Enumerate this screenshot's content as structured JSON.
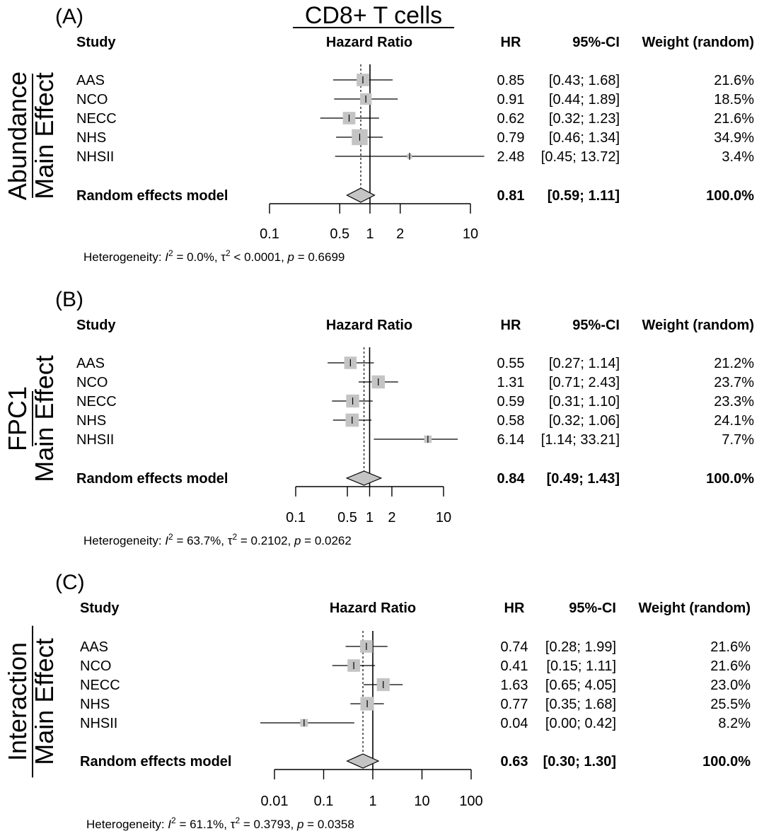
{
  "title": "CD8+ T cells",
  "chart_data": [
    {
      "type": "forest",
      "panel_label": "(A)",
      "side_label_top": "Abundance",
      "side_label_bottom": "Main Effect",
      "headers": {
        "study": "Study",
        "plot": "Hazard Ratio",
        "hr": "HR",
        "ci": "95%-CI",
        "weight": "Weight (random)"
      },
      "x_scale": "log",
      "xlim": [
        0.1,
        10
      ],
      "ticks": [
        0.1,
        0.5,
        1,
        2,
        10
      ],
      "tick_labels": [
        "0.1",
        "0.5",
        "1",
        "2",
        "10"
      ],
      "studies": [
        {
          "name": "AAS",
          "hr": 0.85,
          "lo": 0.43,
          "hi": 1.68,
          "weight": 21.6,
          "hr_text": "0.85",
          "ci_text": "[0.43;  1.68]",
          "weight_text": "21.6%"
        },
        {
          "name": "NCO",
          "hr": 0.91,
          "lo": 0.44,
          "hi": 1.89,
          "weight": 18.5,
          "hr_text": "0.91",
          "ci_text": "[0.44;  1.89]",
          "weight_text": "18.5%"
        },
        {
          "name": "NECC",
          "hr": 0.62,
          "lo": 0.32,
          "hi": 1.23,
          "weight": 21.6,
          "hr_text": "0.62",
          "ci_text": "[0.32;  1.23]",
          "weight_text": "21.6%"
        },
        {
          "name": "NHS",
          "hr": 0.79,
          "lo": 0.46,
          "hi": 1.34,
          "weight": 34.9,
          "hr_text": "0.79",
          "ci_text": "[0.46;  1.34]",
          "weight_text": "34.9%"
        },
        {
          "name": "NHSII",
          "hr": 2.48,
          "lo": 0.45,
          "hi": 13.72,
          "weight": 3.4,
          "hr_text": "2.48",
          "ci_text": "[0.45; 13.72]",
          "weight_text": "3.4%"
        }
      ],
      "pooled": {
        "name": "Random effects model",
        "hr": 0.81,
        "lo": 0.59,
        "hi": 1.11,
        "hr_text": "0.81",
        "ci_text": "[0.59;  1.11]",
        "weight_text": "100.0%"
      },
      "heterogeneity": {
        "prefix": "Heterogeneity: ",
        "i2_symbol": "I",
        "i2_value": " = 0.0%, ",
        "tau_symbol": "τ",
        "tau_value": " < 0.0001, ",
        "p_symbol": "p",
        "p_value": " = 0.6699"
      }
    },
    {
      "type": "forest",
      "panel_label": "(B)",
      "side_label_top": "FPC1",
      "side_label_bottom": "Main Effect",
      "headers": {
        "study": "Study",
        "plot": "Hazard Ratio",
        "hr": "HR",
        "ci": "95%-CI",
        "weight": "Weight (random)"
      },
      "x_scale": "log",
      "xlim": [
        0.1,
        10
      ],
      "ticks": [
        0.1,
        0.5,
        1,
        2,
        10
      ],
      "tick_labels": [
        "0.1",
        "0.5",
        "1",
        "2",
        "10"
      ],
      "studies": [
        {
          "name": "AAS",
          "hr": 0.55,
          "lo": 0.27,
          "hi": 1.14,
          "weight": 21.2,
          "hr_text": "0.55",
          "ci_text": "[0.27;  1.14]",
          "weight_text": "21.2%"
        },
        {
          "name": "NCO",
          "hr": 1.31,
          "lo": 0.71,
          "hi": 2.43,
          "weight": 23.7,
          "hr_text": "1.31",
          "ci_text": "[0.71;  2.43]",
          "weight_text": "23.7%"
        },
        {
          "name": "NECC",
          "hr": 0.59,
          "lo": 0.31,
          "hi": 1.1,
          "weight": 23.3,
          "hr_text": "0.59",
          "ci_text": "[0.31;  1.10]",
          "weight_text": "23.3%"
        },
        {
          "name": "NHS",
          "hr": 0.58,
          "lo": 0.32,
          "hi": 1.06,
          "weight": 24.1,
          "hr_text": "0.58",
          "ci_text": "[0.32;  1.06]",
          "weight_text": "24.1%"
        },
        {
          "name": "NHSII",
          "hr": 6.14,
          "lo": 1.14,
          "hi": 33.21,
          "weight": 7.7,
          "hr_text": "6.14",
          "ci_text": "[1.14; 33.21]",
          "weight_text": "7.7%"
        }
      ],
      "pooled": {
        "name": "Random effects model",
        "hr": 0.84,
        "lo": 0.49,
        "hi": 1.43,
        "hr_text": "0.84",
        "ci_text": "[0.49;  1.43]",
        "weight_text": "100.0%"
      },
      "heterogeneity": {
        "prefix": "Heterogeneity: ",
        "i2_symbol": "I",
        "i2_value": " = 63.7%, ",
        "tau_symbol": "τ",
        "tau_value": " = 0.2102, ",
        "p_symbol": "p",
        "p_value": " = 0.0262"
      }
    },
    {
      "type": "forest",
      "panel_label": "(C)",
      "side_label_top": "Interaction",
      "side_label_bottom": "Main Effect",
      "headers": {
        "study": "Study",
        "plot": "Hazard Ratio",
        "hr": "HR",
        "ci": "95%-CI",
        "weight": "Weight (random)"
      },
      "x_scale": "log",
      "xlim": [
        0.01,
        100
      ],
      "ticks": [
        0.01,
        0.1,
        1,
        10,
        100
      ],
      "tick_labels": [
        "0.01",
        "0.1",
        "1",
        "10",
        "100"
      ],
      "studies": [
        {
          "name": "AAS",
          "hr": 0.74,
          "lo": 0.28,
          "hi": 1.99,
          "weight": 21.6,
          "hr_text": "0.74",
          "ci_text": "[0.28; 1.99]",
          "weight_text": "21.6%"
        },
        {
          "name": "NCO",
          "hr": 0.41,
          "lo": 0.15,
          "hi": 1.11,
          "weight": 21.6,
          "hr_text": "0.41",
          "ci_text": "[0.15; 1.11]",
          "weight_text": "21.6%"
        },
        {
          "name": "NECC",
          "hr": 1.63,
          "lo": 0.65,
          "hi": 4.05,
          "weight": 23.0,
          "hr_text": "1.63",
          "ci_text": "[0.65; 4.05]",
          "weight_text": "23.0%"
        },
        {
          "name": "NHS",
          "hr": 0.77,
          "lo": 0.35,
          "hi": 1.68,
          "weight": 25.5,
          "hr_text": "0.77",
          "ci_text": "[0.35; 1.68]",
          "weight_text": "25.5%"
        },
        {
          "name": "NHSII",
          "hr": 0.04,
          "lo": 0.004,
          "hi": 0.42,
          "weight": 8.2,
          "hr_text": "0.04",
          "ci_text": "[0.00; 0.42]",
          "weight_text": "8.2%"
        }
      ],
      "pooled": {
        "name": "Random effects model",
        "hr": 0.63,
        "lo": 0.3,
        "hi": 1.3,
        "hr_text": "0.63",
        "ci_text": "[0.30; 1.30]",
        "weight_text": "100.0%"
      },
      "heterogeneity": {
        "prefix": "Heterogeneity: ",
        "i2_symbol": "I",
        "i2_value": " = 61.1%, ",
        "tau_symbol": "τ",
        "tau_value": " = 0.3793, ",
        "p_symbol": "p",
        "p_value": " = 0.0358"
      }
    }
  ],
  "colors": {
    "square": "#c4c4c4",
    "diamond": "#c4c4c4",
    "line": "#000000"
  }
}
